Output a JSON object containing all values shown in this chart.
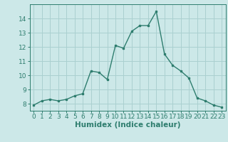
{
  "x": [
    0,
    1,
    2,
    3,
    4,
    5,
    6,
    7,
    8,
    9,
    10,
    11,
    12,
    13,
    14,
    15,
    16,
    17,
    18,
    19,
    20,
    21,
    22,
    23
  ],
  "y": [
    7.9,
    8.2,
    8.3,
    8.2,
    8.3,
    8.55,
    8.7,
    10.3,
    10.2,
    9.7,
    12.1,
    11.9,
    13.1,
    13.5,
    13.5,
    14.5,
    11.5,
    10.7,
    10.3,
    9.8,
    8.4,
    8.2,
    7.9,
    7.75
  ],
  "color": "#2e7d6e",
  "bg_color": "#cce8e8",
  "grid_color": "#aad0d0",
  "xlabel": "Humidex (Indice chaleur)",
  "ylim": [
    7.5,
    15.0
  ],
  "xlim": [
    -0.5,
    23.5
  ],
  "yticks": [
    8,
    9,
    10,
    11,
    12,
    13,
    14
  ],
  "xticks": [
    0,
    1,
    2,
    3,
    4,
    5,
    6,
    7,
    8,
    9,
    10,
    11,
    12,
    13,
    14,
    15,
    16,
    17,
    18,
    19,
    20,
    21,
    22,
    23
  ],
  "tick_fontsize": 6.5,
  "xlabel_fontsize": 7.5
}
